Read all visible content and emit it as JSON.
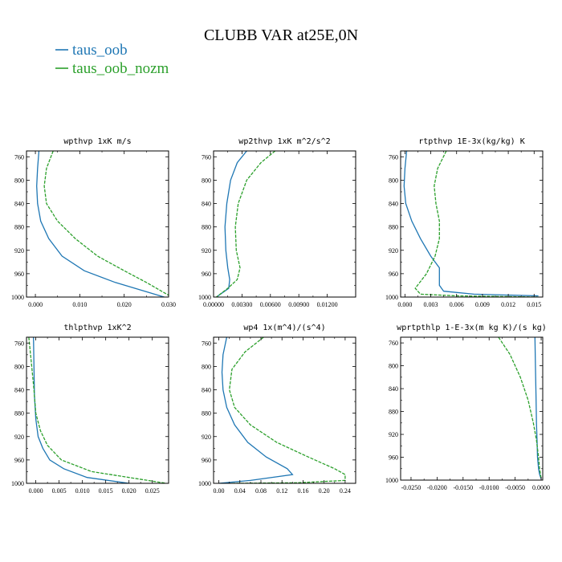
{
  "figure": {
    "title": "CLUBB VAR at25E,0N",
    "legend": [
      {
        "label": "taus_oob",
        "color": "#1f77b4"
      },
      {
        "label": "taus_oob_nozm",
        "color": "#2ca02c"
      }
    ]
  },
  "chart_data": [
    {
      "type": "line",
      "title": "wpthvp   1xK m/s",
      "xlim": [
        -0.002,
        0.03
      ],
      "ylim": [
        1000,
        750
      ],
      "xticks": [
        0.0,
        0.01,
        0.02,
        0.03
      ],
      "xtick_labels": [
        "0.000",
        "0.010",
        "0.020",
        "0.030"
      ],
      "yticks": [
        760,
        800,
        840,
        880,
        920,
        960,
        1000
      ],
      "ytick_labels": [
        "760",
        "800",
        "840",
        "880",
        "920",
        "960",
        "1000"
      ],
      "series": [
        {
          "name": "taus_oob",
          "color": "#1f77b4",
          "dashed": false,
          "x": [
            0.0008,
            0.0005,
            0.0003,
            0.0005,
            0.0012,
            0.003,
            0.006,
            0.011,
            0.018,
            0.029
          ],
          "y": [
            750,
            780,
            810,
            840,
            870,
            900,
            930,
            955,
            975,
            1000
          ]
        },
        {
          "name": "taus_oob_nozm",
          "color": "#2ca02c",
          "dashed": true,
          "x": [
            0.004,
            0.0025,
            0.002,
            0.0025,
            0.005,
            0.009,
            0.014,
            0.02,
            0.025,
            0.03
          ],
          "y": [
            750,
            780,
            810,
            840,
            870,
            900,
            930,
            955,
            975,
            997
          ]
        }
      ]
    },
    {
      "type": "line",
      "title": "wp2thvp   1xK m^2/s^2",
      "xlim": [
        0.0,
        0.015
      ],
      "ylim": [
        1000,
        750
      ],
      "xticks": [
        0.0,
        0.003,
        0.006,
        0.009,
        0.012
      ],
      "xtick_labels": [
        "0.00000",
        "0.00300",
        "0.00600",
        "0.00900",
        "0.01200"
      ],
      "yticks": [
        760,
        800,
        840,
        880,
        920,
        960,
        1000
      ],
      "ytick_labels": [
        "760",
        "800",
        "840",
        "880",
        "920",
        "960",
        "1000"
      ],
      "series": [
        {
          "name": "taus_oob",
          "color": "#1f77b4",
          "dashed": false,
          "x": [
            0.0035,
            0.0025,
            0.0018,
            0.0014,
            0.0012,
            0.0013,
            0.0015,
            0.0017,
            0.0016,
            0.0003
          ],
          "y": [
            750,
            770,
            800,
            840,
            880,
            920,
            950,
            970,
            985,
            1000
          ]
        },
        {
          "name": "taus_oob_nozm",
          "color": "#2ca02c",
          "dashed": true,
          "x": [
            0.0065,
            0.005,
            0.0035,
            0.0026,
            0.0023,
            0.0024,
            0.0028,
            0.0025,
            0.0015,
            0.0003
          ],
          "y": [
            750,
            770,
            800,
            840,
            880,
            920,
            950,
            970,
            985,
            1000
          ]
        }
      ]
    },
    {
      "type": "line",
      "title": "rtpthvp   1E-3x(kg/kg) K",
      "xlim": [
        -0.0005,
        0.016
      ],
      "ylim": [
        1000,
        750
      ],
      "xticks": [
        0.0,
        0.003,
        0.006,
        0.009,
        0.012,
        0.015
      ],
      "xtick_labels": [
        "0.000",
        "0.003",
        "0.006",
        "0.009",
        "0.012",
        "0.015"
      ],
      "yticks": [
        760,
        800,
        840,
        880,
        920,
        960,
        1000
      ],
      "ytick_labels": [
        "760",
        "800",
        "840",
        "880",
        "920",
        "960",
        "1000"
      ],
      "series": [
        {
          "name": "taus_oob",
          "color": "#1f77b4",
          "dashed": false,
          "x": [
            0.0002,
            0.0,
            -0.0001,
            0.0001,
            0.0008,
            0.0018,
            0.003,
            0.004,
            0.004,
            0.0045,
            0.008,
            0.0155
          ],
          "y": [
            750,
            780,
            810,
            840,
            870,
            900,
            930,
            950,
            980,
            990,
            995,
            998
          ]
        },
        {
          "name": "taus_oob_nozm",
          "color": "#2ca02c",
          "dashed": true,
          "x": [
            0.0048,
            0.0038,
            0.0034,
            0.0036,
            0.004,
            0.004,
            0.0035,
            0.0025,
            0.0012,
            0.0018,
            0.006,
            0.0155
          ],
          "y": [
            750,
            780,
            810,
            840,
            870,
            900,
            930,
            960,
            985,
            995,
            998,
            1000
          ]
        }
      ]
    },
    {
      "type": "line",
      "title": "thlpthvp   1xK^2",
      "xlim": [
        -0.002,
        0.0285
      ],
      "ylim": [
        1000,
        750
      ],
      "xticks": [
        0.0,
        0.005,
        0.01,
        0.015,
        0.02,
        0.025
      ],
      "xtick_labels": [
        "0.000",
        "0.005",
        "0.010",
        "0.015",
        "0.020",
        "0.025"
      ],
      "yticks": [
        760,
        800,
        840,
        880,
        920,
        960,
        1000
      ],
      "ytick_labels": [
        "760",
        "800",
        "840",
        "880",
        "920",
        "960",
        "1000"
      ],
      "series": [
        {
          "name": "taus_oob",
          "color": "#1f77b4",
          "dashed": false,
          "x": [
            -0.0005,
            -0.0004,
            -0.0003,
            0.0,
            0.0005,
            0.0015,
            0.003,
            0.006,
            0.011,
            0.02
          ],
          "y": [
            750,
            800,
            850,
            890,
            920,
            940,
            960,
            975,
            990,
            1000
          ]
        },
        {
          "name": "taus_oob_nozm",
          "color": "#2ca02c",
          "dashed": true,
          "x": [
            -0.0015,
            -0.001,
            -0.0004,
            0.0,
            0.001,
            0.0025,
            0.0055,
            0.012,
            0.02,
            0.028
          ],
          "y": [
            750,
            790,
            840,
            880,
            910,
            935,
            960,
            980,
            990,
            1000
          ]
        }
      ]
    },
    {
      "type": "line",
      "title": "wp4   1x(m^4)/(s^4)",
      "xlim": [
        -0.01,
        0.26
      ],
      "ylim": [
        1000,
        750
      ],
      "xticks": [
        0.0,
        0.04,
        0.08,
        0.12,
        0.16,
        0.2,
        0.24
      ],
      "xtick_labels": [
        "0.00",
        "0.04",
        "0.08",
        "0.12",
        "0.16",
        "0.20",
        "0.24"
      ],
      "yticks": [
        760,
        800,
        840,
        880,
        920,
        960,
        1000
      ],
      "ytick_labels": [
        "760",
        "800",
        "840",
        "880",
        "920",
        "960",
        "1000"
      ],
      "series": [
        {
          "name": "taus_oob",
          "color": "#1f77b4",
          "dashed": false,
          "x": [
            0.015,
            0.008,
            0.006,
            0.008,
            0.015,
            0.03,
            0.055,
            0.09,
            0.13,
            0.14,
            0.06,
            0.0
          ],
          "y": [
            750,
            780,
            810,
            840,
            870,
            900,
            930,
            955,
            975,
            985,
            995,
            1000
          ]
        },
        {
          "name": "taus_oob_nozm",
          "color": "#2ca02c",
          "dashed": true,
          "x": [
            0.085,
            0.05,
            0.025,
            0.02,
            0.03,
            0.06,
            0.11,
            0.17,
            0.22,
            0.24,
            0.24,
            0.15,
            0.02
          ],
          "y": [
            750,
            775,
            805,
            840,
            870,
            900,
            930,
            955,
            975,
            985,
            995,
            999,
            1000
          ]
        }
      ]
    },
    {
      "type": "line",
      "title": "wprtpthlp   1-E-3x(m kg K)/(s kg)",
      "xlim": [
        -0.027,
        0.0003
      ],
      "ylim": [
        1000,
        750
      ],
      "xticks": [
        -0.025,
        -0.02,
        -0.015,
        -0.01,
        -0.005,
        0.0
      ],
      "xtick_labels": [
        "-0.0250",
        "-0.0200",
        "-0.0150",
        "-0.0100",
        "-0.0050",
        "0.0000"
      ],
      "yticks": [
        760,
        800,
        840,
        880,
        920,
        960,
        1000
      ],
      "ytick_labels": [
        "760",
        "800",
        "840",
        "880",
        "920",
        "960",
        "1000"
      ],
      "series": [
        {
          "name": "taus_oob",
          "color": "#1f77b4",
          "dashed": false,
          "x": [
            -0.0012,
            -0.0011,
            -0.001,
            -0.0009,
            -0.0008,
            -0.0007,
            -0.0005,
            -0.0003,
            0.0
          ],
          "y": [
            750,
            800,
            850,
            900,
            930,
            960,
            980,
            990,
            998
          ]
        },
        {
          "name": "taus_oob_nozm",
          "color": "#2ca02c",
          "dashed": true,
          "x": [
            -0.0082,
            -0.006,
            -0.004,
            -0.0025,
            -0.0015,
            -0.0009,
            -0.0005,
            -0.0003,
            0.0
          ],
          "y": [
            750,
            780,
            820,
            860,
            900,
            930,
            960,
            980,
            998
          ]
        }
      ]
    }
  ]
}
